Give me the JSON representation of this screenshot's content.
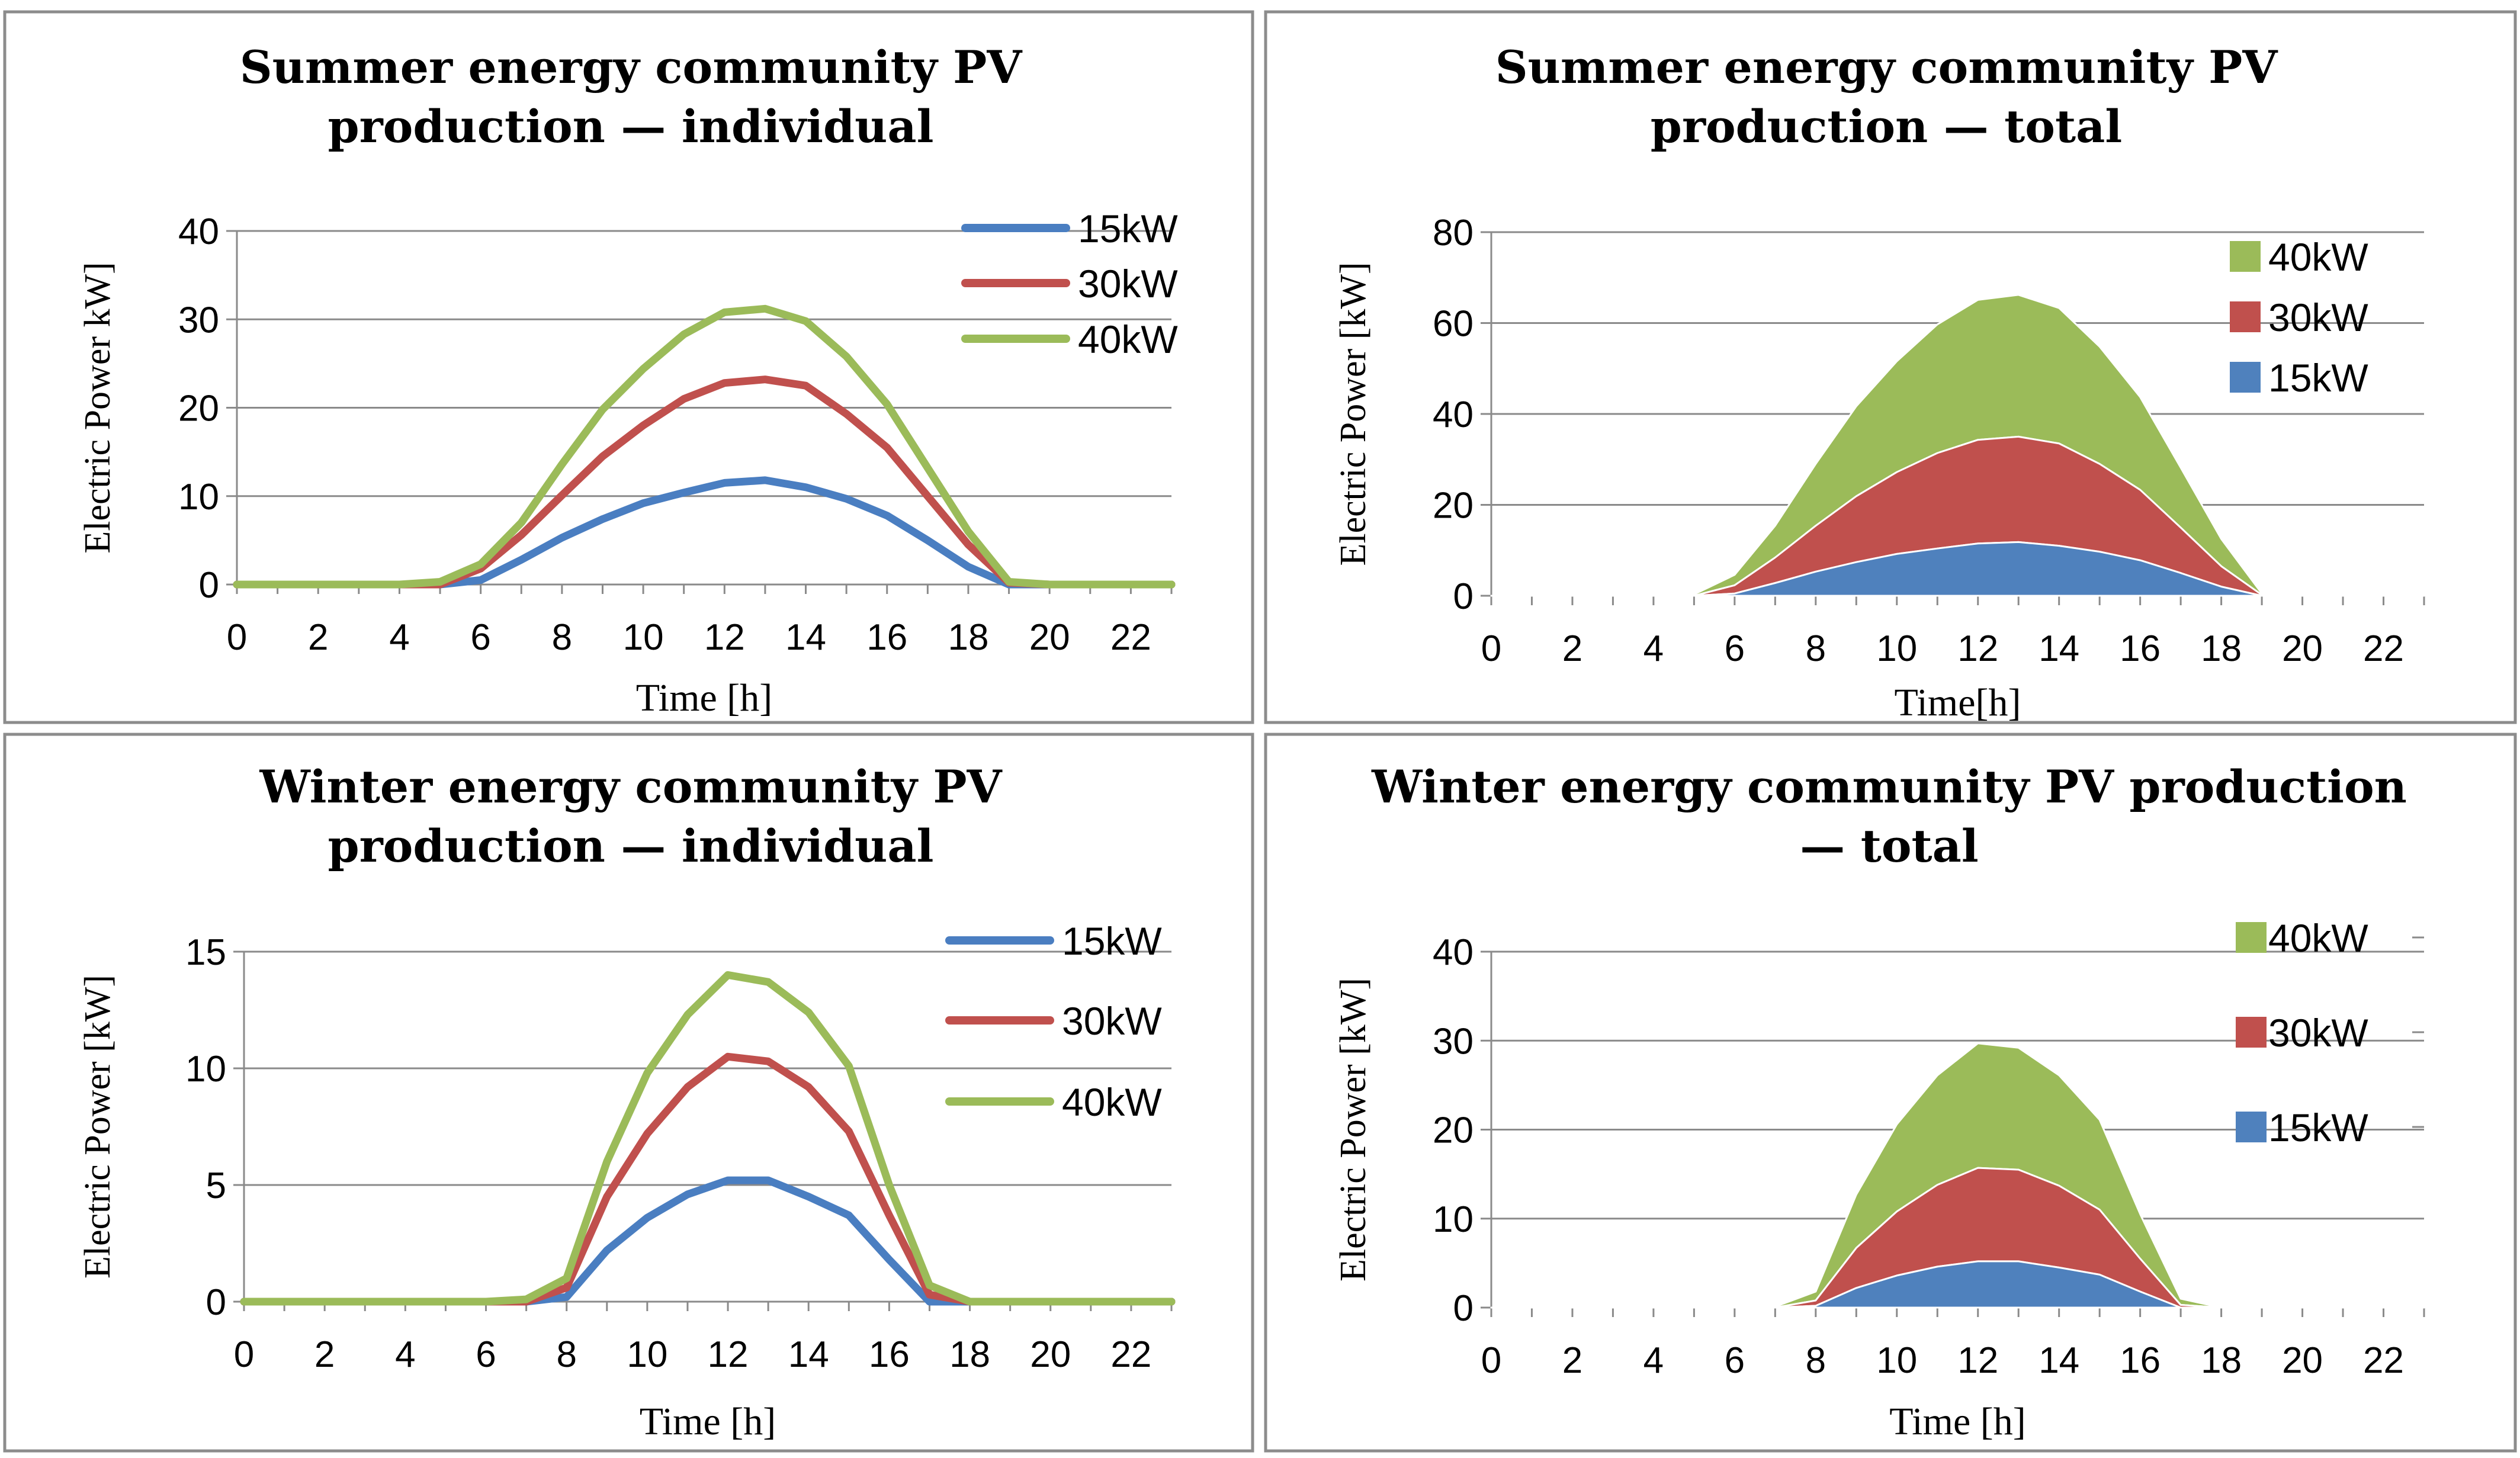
{
  "colors": {
    "panel_border": "#8c8c8c",
    "gridline": "#8a8a8a",
    "axis": "#8a8a8a",
    "series_15kW_line": "#4a7ec1",
    "series_30kW_line": "#c0504d",
    "series_40kW_line": "#9bbb59",
    "series_15kW_area": "#4f81bd",
    "series_30kW_area": "#c0504d",
    "series_40kW_area": "#9bbb59"
  },
  "chart_data": [
    {
      "type": "line",
      "title_lines": [
        "Summer energy community PV",
        "production — individual"
      ],
      "xlabel": "Time [h]",
      "ylabel": "Electric Power  kW]",
      "x": [
        0,
        1,
        2,
        3,
        4,
        5,
        6,
        7,
        8,
        9,
        10,
        11,
        12,
        13,
        14,
        15,
        16,
        17,
        18,
        19,
        20,
        21,
        22,
        23
      ],
      "xticks": [
        "0",
        "2",
        "4",
        "6",
        "8",
        "10",
        "12",
        "14",
        "16",
        "18",
        "20",
        "22"
      ],
      "ylim": [
        0,
        40
      ],
      "yticks": [
        "0",
        "10",
        "20",
        "30",
        "40"
      ],
      "legend_position": "top-right",
      "series": [
        {
          "name": "15kW",
          "values": [
            0,
            0,
            0,
            0,
            0,
            0,
            0.5,
            2.8,
            5.3,
            7.4,
            9.2,
            10.4,
            11.5,
            11.8,
            11.0,
            9.7,
            7.8,
            5.0,
            2.0,
            0,
            0,
            0,
            0,
            0
          ]
        },
        {
          "name": "30kW",
          "values": [
            0,
            0,
            0,
            0,
            0,
            0,
            1.8,
            5.6,
            10.1,
            14.5,
            18.0,
            21.0,
            22.8,
            23.2,
            22.5,
            19.3,
            15.5,
            10.0,
            4.5,
            0.2,
            0,
            0,
            0,
            0
          ]
        },
        {
          "name": "40kW",
          "values": [
            0,
            0,
            0,
            0,
            0,
            0.3,
            2.3,
            7.0,
            13.6,
            19.8,
            24.4,
            28.3,
            30.8,
            31.2,
            29.8,
            25.8,
            20.4,
            13.2,
            6.0,
            0.3,
            0,
            0,
            0,
            0
          ]
        }
      ]
    },
    {
      "type": "area",
      "stacked": true,
      "title_lines": [
        "Summer energy community PV",
        "production — total"
      ],
      "xlabel": "Time[h]",
      "ylabel": "Electric Power  [kW]",
      "x": [
        0,
        1,
        2,
        3,
        4,
        5,
        6,
        7,
        8,
        9,
        10,
        11,
        12,
        13,
        14,
        15,
        16,
        17,
        18,
        19,
        20,
        21,
        22,
        23
      ],
      "xticks": [
        "0",
        "2",
        "4",
        "6",
        "8",
        "10",
        "12",
        "14",
        "16",
        "18",
        "20",
        "22"
      ],
      "ylim": [
        0,
        80
      ],
      "yticks": [
        "0",
        "20",
        "40",
        "60",
        "80"
      ],
      "legend_position": "top-right",
      "legend_order": [
        "40kW",
        "30kW",
        "15kW"
      ],
      "series": [
        {
          "name": "15kW",
          "values": [
            0,
            0,
            0,
            0,
            0,
            0,
            0.5,
            2.8,
            5.3,
            7.4,
            9.2,
            10.4,
            11.5,
            11.8,
            11.0,
            9.7,
            7.8,
            5.0,
            2.0,
            0,
            0,
            0,
            0,
            0
          ]
        },
        {
          "name": "30kW",
          "values": [
            0,
            0,
            0,
            0,
            0,
            0,
            1.8,
            5.6,
            10.1,
            14.5,
            18.0,
            21.0,
            22.8,
            23.2,
            22.5,
            19.3,
            15.5,
            10.0,
            4.5,
            0.2,
            0,
            0,
            0,
            0
          ]
        },
        {
          "name": "40kW",
          "values": [
            0,
            0,
            0,
            0,
            0,
            0.3,
            2.3,
            7.0,
            13.6,
            19.8,
            24.4,
            28.3,
            30.8,
            31.2,
            29.8,
            25.8,
            20.4,
            13.2,
            6.0,
            0.3,
            0,
            0,
            0,
            0
          ]
        }
      ]
    },
    {
      "type": "line",
      "title_lines": [
        "Winter energy community PV",
        "production — individual"
      ],
      "xlabel": "Time [h]",
      "ylabel": "Electric Power  [kW]",
      "x": [
        0,
        1,
        2,
        3,
        4,
        5,
        6,
        7,
        8,
        9,
        10,
        11,
        12,
        13,
        14,
        15,
        16,
        17,
        18,
        19,
        20,
        21,
        22,
        23
      ],
      "xticks": [
        "0",
        "2",
        "4",
        "6",
        "8",
        "10",
        "12",
        "14",
        "16",
        "18",
        "20",
        "22"
      ],
      "ylim": [
        0,
        15
      ],
      "yticks": [
        "0",
        "5",
        "10",
        "15"
      ],
      "legend_position": "top-right",
      "series": [
        {
          "name": "15kW",
          "values": [
            0,
            0,
            0,
            0,
            0,
            0,
            0,
            0,
            0.2,
            2.2,
            3.6,
            4.6,
            5.2,
            5.2,
            4.5,
            3.7,
            1.8,
            0,
            0,
            0,
            0,
            0,
            0,
            0
          ]
        },
        {
          "name": "30kW",
          "values": [
            0,
            0,
            0,
            0,
            0,
            0,
            0,
            0,
            0.6,
            4.5,
            7.2,
            9.2,
            10.5,
            10.3,
            9.2,
            7.3,
            3.7,
            0.3,
            0,
            0,
            0,
            0,
            0,
            0
          ]
        },
        {
          "name": "40kW",
          "values": [
            0,
            0,
            0,
            0,
            0,
            0,
            0,
            0.1,
            1.0,
            6.0,
            9.8,
            12.3,
            14.0,
            13.7,
            12.4,
            10.1,
            5.0,
            0.7,
            0,
            0,
            0,
            0,
            0,
            0
          ]
        }
      ]
    },
    {
      "type": "area",
      "stacked": true,
      "title_lines": [
        "Winter energy community PV production",
        "— total"
      ],
      "xlabel": "Time [h]",
      "ylabel": "Electric Power  [kW]",
      "x": [
        0,
        1,
        2,
        3,
        4,
        5,
        6,
        7,
        8,
        9,
        10,
        11,
        12,
        13,
        14,
        15,
        16,
        17,
        18,
        19,
        20,
        21,
        22,
        23
      ],
      "xticks": [
        "0",
        "2",
        "4",
        "6",
        "8",
        "10",
        "12",
        "14",
        "16",
        "18",
        "20",
        "22"
      ],
      "ylim": [
        0,
        40
      ],
      "yticks": [
        "0",
        "10",
        "20",
        "30",
        "40"
      ],
      "legend_position": "right",
      "legend_order": [
        "40kW",
        "30kW",
        "15kW"
      ],
      "series": [
        {
          "name": "15kW",
          "values": [
            0,
            0,
            0,
            0,
            0,
            0,
            0,
            0,
            0.2,
            2.2,
            3.6,
            4.6,
            5.2,
            5.2,
            4.5,
            3.7,
            1.8,
            0,
            0,
            0,
            0,
            0,
            0,
            0
          ]
        },
        {
          "name": "30kW",
          "values": [
            0,
            0,
            0,
            0,
            0,
            0,
            0,
            0,
            0.6,
            4.5,
            7.2,
            9.2,
            10.5,
            10.3,
            9.2,
            7.3,
            3.7,
            0.3,
            0,
            0,
            0,
            0,
            0,
            0
          ]
        },
        {
          "name": "40kW",
          "values": [
            0,
            0,
            0,
            0,
            0,
            0,
            0,
            0.1,
            1.0,
            6.0,
            9.8,
            12.3,
            14.0,
            13.7,
            12.4,
            10.1,
            5.0,
            0.7,
            0,
            0,
            0,
            0,
            0,
            0
          ]
        }
      ]
    }
  ]
}
